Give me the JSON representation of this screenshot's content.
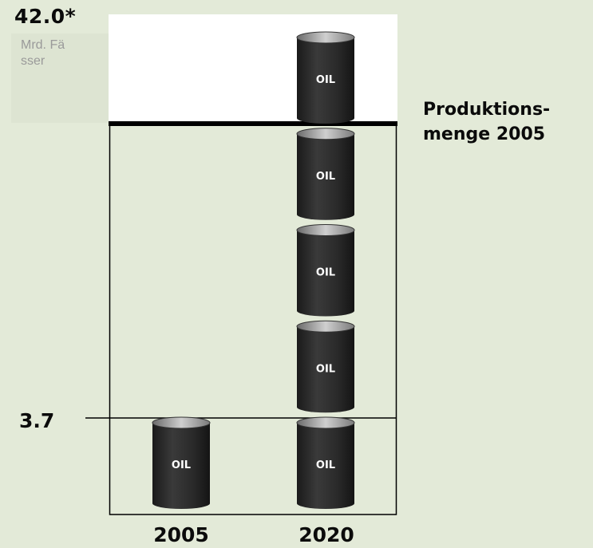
{
  "chart_data": {
    "type": "bar",
    "unit_label": "Mrd. Fässer",
    "categories": [
      "2005",
      "2020"
    ],
    "series": [
      {
        "values": [
          3.7,
          42.0
        ]
      }
    ],
    "value_labels": {
      "high": "42.0*",
      "low": "3.7"
    },
    "reference_line": {
      "label": "Produktions-\nmenge 2005"
    },
    "barrel_label": "OIL",
    "barrels_per_category": [
      1,
      5
    ],
    "colors": {
      "background": "#e3ead8",
      "top_zone": "#ffffff",
      "barrel": "#2a2a2a",
      "barrel_label": "#ffffff",
      "threshold_line": "#000000"
    }
  }
}
